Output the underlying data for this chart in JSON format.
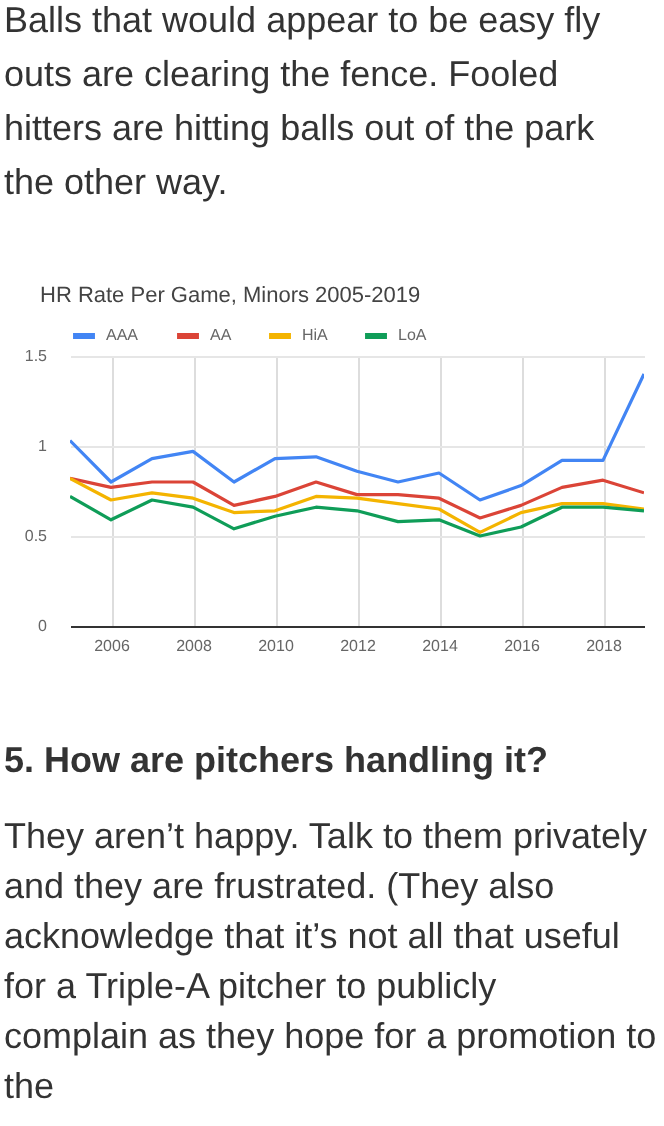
{
  "chart_data": {
    "type": "line",
    "title": "HR Rate Per Game, Minors 2005-2019",
    "x": [
      2005,
      2006,
      2007,
      2008,
      2009,
      2010,
      2011,
      2012,
      2013,
      2014,
      2015,
      2016,
      2017,
      2018,
      2019
    ],
    "series": [
      {
        "name": "AAA",
        "color": "#4285f4",
        "values": [
          1.03,
          0.8,
          0.93,
          0.97,
          0.8,
          0.93,
          0.94,
          0.86,
          0.8,
          0.85,
          0.7,
          0.78,
          0.92,
          0.92,
          1.4
        ]
      },
      {
        "name": "AA",
        "color": "#db4437",
        "values": [
          0.82,
          0.77,
          0.8,
          0.8,
          0.67,
          0.72,
          0.8,
          0.73,
          0.73,
          0.71,
          0.6,
          0.67,
          0.77,
          0.81,
          0.74
        ]
      },
      {
        "name": "HiA",
        "color": "#f4b400",
        "values": [
          0.82,
          0.7,
          0.74,
          0.71,
          0.63,
          0.64,
          0.72,
          0.71,
          0.68,
          0.65,
          0.52,
          0.63,
          0.68,
          0.68,
          0.65
        ]
      },
      {
        "name": "LoA",
        "color": "#0f9d58",
        "values": [
          0.72,
          0.59,
          0.7,
          0.66,
          0.54,
          0.61,
          0.66,
          0.64,
          0.58,
          0.59,
          0.5,
          0.55,
          0.66,
          0.66,
          0.64
        ]
      }
    ],
    "xlim": [
      2005,
      2019
    ],
    "xticks": [
      2006,
      2008,
      2010,
      2012,
      2014,
      2016,
      2018
    ],
    "ylim": [
      0,
      1.5
    ],
    "yticks": [
      0,
      0.5,
      1,
      1.5
    ],
    "grid": true,
    "legend": "top",
    "marker": "none",
    "line_style": "solid",
    "annotations": [
      "Balls that would appear to be easy fly outs are clearing the fence. Fooled hitters are hitting balls out of the park the other way.",
      "5. How are pitchers handling it?",
      "They aren’t happy. Talk to them privately and they are frustrated. (They also acknowledge that it’s not all that useful for a Triple-A pitcher to publicly complain as they hope for a promotion to the"
    ]
  }
}
